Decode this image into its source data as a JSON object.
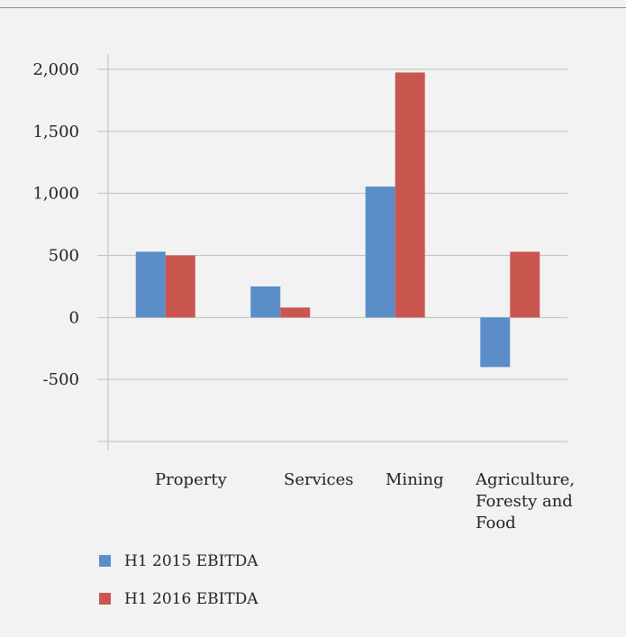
{
  "chart_data": {
    "type": "bar",
    "categories": [
      "Property",
      "Services",
      "Mining",
      "Agriculture, Foresty and Food"
    ],
    "category_lines": [
      [
        "Property"
      ],
      [
        "Services"
      ],
      [
        "Mining"
      ],
      [
        "Agriculture,",
        "Foresty and",
        "Food"
      ]
    ],
    "series": [
      {
        "name": "H1 2015 EBITDA",
        "values": [
          530,
          250,
          1055,
          -400
        ],
        "color": "#5b8dc9"
      },
      {
        "name": "H1 2016 EBITDA",
        "values": [
          500,
          80,
          1975,
          530
        ],
        "color": "#c9564f"
      }
    ],
    "yticks": [
      2000,
      1500,
      1000,
      500,
      0,
      -500
    ],
    "ytick_labels": [
      "2,000",
      "1,500",
      "1,000",
      "500",
      "0",
      "-500"
    ],
    "ylim": [
      -1000,
      2000
    ],
    "grid": true,
    "legend_position": "bottom-left",
    "title": "",
    "xlabel": "",
    "ylabel": ""
  }
}
